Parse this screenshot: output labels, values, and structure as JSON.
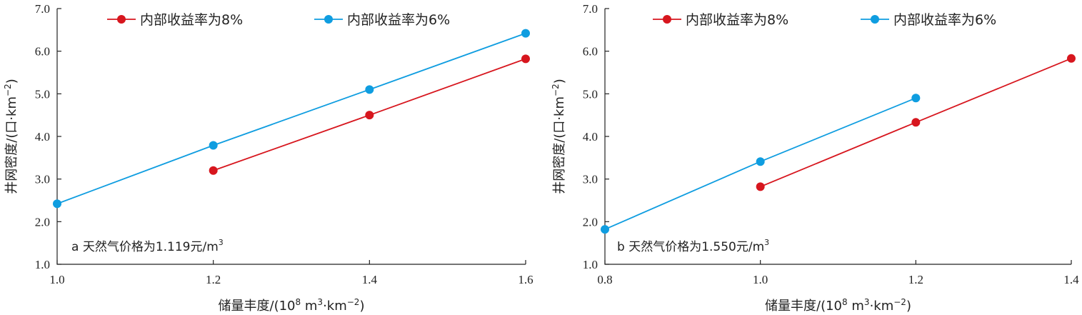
{
  "colors": {
    "irr8": "#d7161e",
    "irr6": "#0f9de0"
  },
  "chart_data": [
    {
      "type": "line",
      "annotation": "a 天然气价格为1.119元/m",
      "annotation_sup": "3",
      "xlabel": "储量丰度/(10",
      "xlabel_sup1": "8",
      "xlabel_mid": " m",
      "xlabel_sup2": "3",
      "xlabel_mid2": "·km",
      "xlabel_sup3": "−2",
      "xlabel_end": ")",
      "ylabel": "井网密度/(口·km",
      "ylabel_sup": "−2",
      "ylabel_end": ")",
      "xlim": [
        1.0,
        1.6
      ],
      "ylim": [
        1.0,
        7.0
      ],
      "xticks": [
        "1.0",
        "1.2",
        "1.4",
        "1.6"
      ],
      "xtick_values": [
        1.0,
        1.2,
        1.4,
        1.6
      ],
      "yticks": [
        "1.0",
        "2.0",
        "3.0",
        "4.0",
        "5.0",
        "6.0",
        "7.0"
      ],
      "ytick_values": [
        1,
        2,
        3,
        4,
        5,
        6,
        7
      ],
      "series": [
        {
          "name": "内部收益率为8%",
          "color_key": "irr8",
          "x": [
            1.2,
            1.4,
            1.6
          ],
          "y": [
            3.2,
            4.5,
            5.82
          ]
        },
        {
          "name": "内部收益率为6%",
          "color_key": "irr6",
          "x": [
            1.0,
            1.2,
            1.4,
            1.6
          ],
          "y": [
            2.42,
            3.79,
            5.1,
            6.42
          ]
        }
      ]
    },
    {
      "type": "line",
      "annotation": "b 天然气价格为1.550元/m",
      "annotation_sup": "3",
      "xlabel": "储量丰度/(10",
      "xlabel_sup1": "8",
      "xlabel_mid": " m",
      "xlabel_sup2": "3",
      "xlabel_mid2": "·km",
      "xlabel_sup3": "−2",
      "xlabel_end": ")",
      "ylabel": "井网密度/(口·km",
      "ylabel_sup": "−2",
      "ylabel_end": ")",
      "xlim": [
        0.8,
        1.4
      ],
      "ylim": [
        1.0,
        7.0
      ],
      "xticks": [
        "0.8",
        "1.0",
        "1.2",
        "1.4"
      ],
      "xtick_values": [
        0.8,
        1.0,
        1.2,
        1.4
      ],
      "yticks": [
        "1.0",
        "2.0",
        "3.0",
        "4.0",
        "5.0",
        "6.0",
        "7.0"
      ],
      "ytick_values": [
        1,
        2,
        3,
        4,
        5,
        6,
        7
      ],
      "series": [
        {
          "name": "内部收益率为8%",
          "color_key": "irr8",
          "x": [
            1.0,
            1.2,
            1.4
          ],
          "y": [
            2.82,
            4.33,
            5.83
          ]
        },
        {
          "name": "内部收益率为6%",
          "color_key": "irr6",
          "x": [
            0.8,
            1.0,
            1.2
          ],
          "y": [
            1.82,
            3.41,
            4.9
          ]
        }
      ]
    }
  ]
}
